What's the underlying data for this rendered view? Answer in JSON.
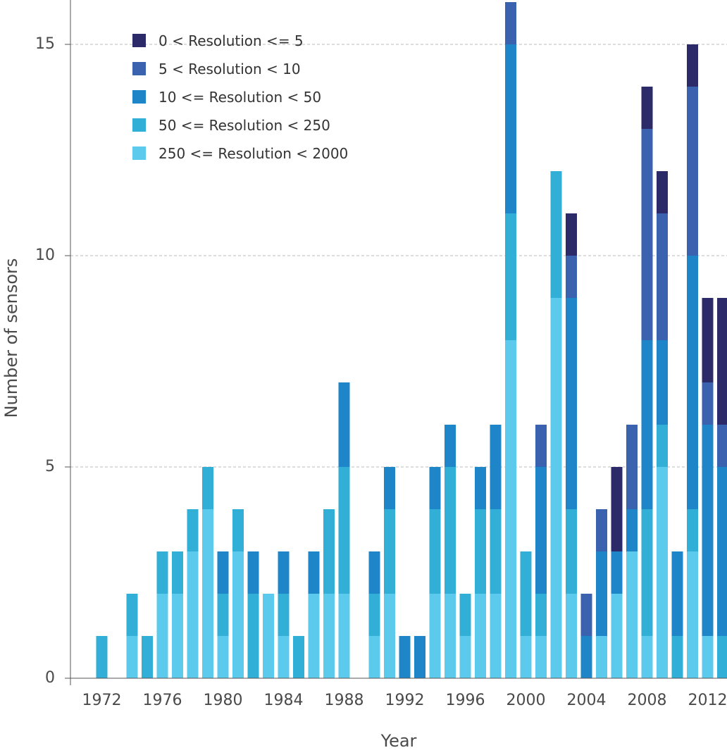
{
  "chart_data": {
    "type": "bar",
    "stacked": true,
    "xlabel": "Year",
    "ylabel": "Number of sensors",
    "ylim": [
      0,
      16
    ],
    "xlim": [
      1970,
      2013
    ],
    "yticks": [
      0,
      5,
      10,
      15
    ],
    "xticks": [
      1972,
      1976,
      1980,
      1984,
      1988,
      1992,
      1996,
      2000,
      2004,
      2008,
      2012
    ],
    "grid": "horizontal dashed",
    "legend_position": "top-left",
    "years": [
      1972,
      1973,
      1974,
      1975,
      1976,
      1977,
      1978,
      1979,
      1980,
      1981,
      1982,
      1983,
      1984,
      1985,
      1986,
      1987,
      1988,
      1989,
      1990,
      1991,
      1992,
      1993,
      1994,
      1995,
      1996,
      1997,
      1998,
      1999,
      2000,
      2001,
      2002,
      2003,
      2004,
      2005,
      2006,
      2007,
      2008,
      2009,
      2010,
      2011,
      2012,
      2013
    ],
    "series": [
      {
        "name": "250 <= Resolution < 2000",
        "color": "#5bcaec",
        "values": [
          0,
          0,
          1,
          0,
          2,
          2,
          3,
          4,
          1,
          3,
          0,
          2,
          1,
          0,
          2,
          2,
          2,
          0,
          1,
          2,
          0,
          0,
          2,
          2,
          1,
          2,
          2,
          8,
          1,
          1,
          9,
          2,
          0,
          1,
          2,
          3,
          1,
          5,
          0,
          3,
          1,
          0
        ]
      },
      {
        "name": "50 <= Resolution < 250",
        "color": "#31afd6",
        "values": [
          1,
          0,
          1,
          1,
          1,
          1,
          1,
          1,
          1,
          1,
          2,
          0,
          1,
          1,
          0,
          2,
          3,
          0,
          1,
          2,
          0,
          0,
          2,
          3,
          1,
          2,
          2,
          3,
          2,
          1,
          3,
          2,
          0,
          0,
          0,
          0,
          3,
          1,
          1,
          1,
          0,
          1
        ]
      },
      {
        "name": "10 <= Resolution < 50",
        "color": "#1e86c8",
        "values": [
          0,
          0,
          0,
          0,
          0,
          0,
          0,
          0,
          1,
          0,
          1,
          0,
          1,
          0,
          1,
          0,
          2,
          0,
          1,
          1,
          1,
          1,
          1,
          1,
          0,
          1,
          2,
          4,
          0,
          3,
          0,
          5,
          1,
          2,
          1,
          1,
          4,
          2,
          2,
          6,
          5,
          4
        ]
      },
      {
        "name": "5 < Resolution < 10",
        "color": "#3a62af",
        "values": [
          0,
          0,
          0,
          0,
          0,
          0,
          0,
          0,
          0,
          0,
          0,
          0,
          0,
          0,
          0,
          0,
          0,
          0,
          0,
          0,
          0,
          0,
          0,
          0,
          0,
          0,
          0,
          1,
          0,
          1,
          0,
          1,
          1,
          1,
          0,
          2,
          5,
          3,
          0,
          4,
          1,
          1
        ]
      },
      {
        "name": "0 < Resolution <= 5",
        "color": "#2d2a6a",
        "values": [
          0,
          0,
          0,
          0,
          0,
          0,
          0,
          0,
          0,
          0,
          0,
          0,
          0,
          0,
          0,
          0,
          0,
          0,
          0,
          0,
          0,
          0,
          0,
          0,
          0,
          0,
          0,
          0,
          0,
          0,
          0,
          1,
          0,
          0,
          2,
          0,
          1,
          1,
          0,
          1,
          2,
          3
        ]
      }
    ],
    "legend_order": [
      "0 < Resolution <= 5",
      "5 < Resolution < 10",
      "10 <= Resolution < 50",
      "50 <= Resolution < 250",
      "250 <= Resolution < 2000"
    ]
  }
}
